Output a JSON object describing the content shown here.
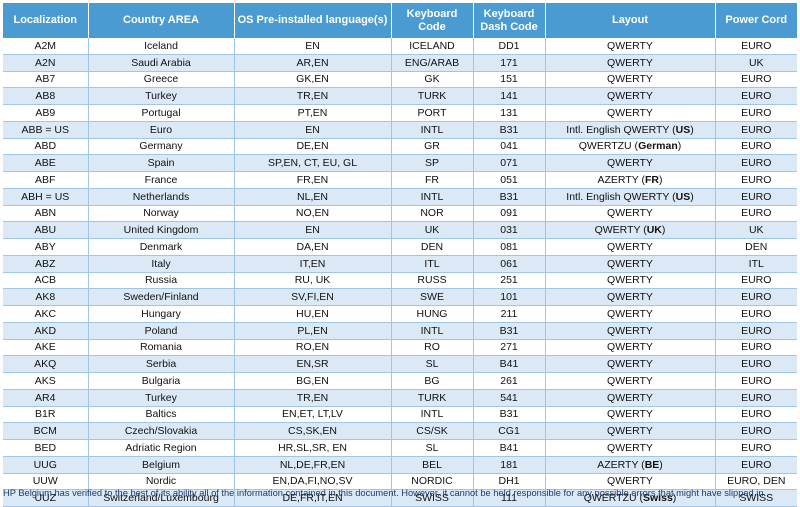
{
  "headers": {
    "localization": "Localization",
    "country": "Country AREA",
    "os_lang": "OS Pre-installed language(s)",
    "kb_code": "Keyboard Code",
    "kb_dash": "Keyboard Dash Code",
    "layout": "Layout",
    "power": "Power Cord"
  },
  "rows": [
    {
      "loc": "A2M",
      "country": "Iceland",
      "lang": "EN",
      "kb": "ICELAND",
      "dash": "DD1",
      "layout": "QWERTY",
      "layout_bold": "",
      "layout_end": "",
      "power": "EURO"
    },
    {
      "loc": "A2N",
      "country": "Saudi Arabia",
      "lang": "AR,EN",
      "kb": "ENG/ARAB",
      "dash": "171",
      "layout": "QWERTY",
      "layout_bold": "",
      "layout_end": "",
      "power": "UK"
    },
    {
      "loc": "AB7",
      "country": "Greece",
      "lang": "GK,EN",
      "kb": "GK",
      "dash": "151",
      "layout": "QWERTY",
      "layout_bold": "",
      "layout_end": "",
      "power": "EURO"
    },
    {
      "loc": "AB8",
      "country": "Turkey",
      "lang": "TR,EN",
      "kb": "TURK",
      "dash": "141",
      "layout": "QWERTY",
      "layout_bold": "",
      "layout_end": "",
      "power": "EURO"
    },
    {
      "loc": "AB9",
      "country": "Portugal",
      "lang": "PT,EN",
      "kb": "PORT",
      "dash": "131",
      "layout": "QWERTY",
      "layout_bold": "",
      "layout_end": "",
      "power": "EURO"
    },
    {
      "loc": "ABB = US",
      "country": "Euro",
      "lang": "EN",
      "kb": "INTL",
      "dash": "B31",
      "layout": "Intl. English QWERTY (",
      "layout_bold": "US",
      "layout_end": ")",
      "power": "EURO"
    },
    {
      "loc": "ABD",
      "country": "Germany",
      "lang": "DE,EN",
      "kb": "GR",
      "dash": "041",
      "layout": "QWERTZU (",
      "layout_bold": "German",
      "layout_end": ")",
      "power": "EURO"
    },
    {
      "loc": "ABE",
      "country": "Spain",
      "lang": "SP,EN, CT, EU, GL",
      "kb": "SP",
      "dash": "071",
      "layout": "QWERTY",
      "layout_bold": "",
      "layout_end": "",
      "power": "EURO"
    },
    {
      "loc": "ABF",
      "country": "France",
      "lang": "FR,EN",
      "kb": "FR",
      "dash": "051",
      "layout": "AZERTY (",
      "layout_bold": "FR",
      "layout_end": ")",
      "power": "EURO"
    },
    {
      "loc": "ABH = US",
      "country": "Netherlands",
      "lang": "NL,EN",
      "kb": "INTL",
      "dash": "B31",
      "layout": "Intl. English QWERTY (",
      "layout_bold": "US",
      "layout_end": ")",
      "power": "EURO"
    },
    {
      "loc": "ABN",
      "country": "Norway",
      "lang": "NO,EN",
      "kb": "NOR",
      "dash": "091",
      "layout": "QWERTY",
      "layout_bold": "",
      "layout_end": "",
      "power": "EURO"
    },
    {
      "loc": "ABU",
      "country": "United Kingdom",
      "lang": "EN",
      "kb": "UK",
      "dash": "031",
      "layout": "QWERTY (",
      "layout_bold": "UK",
      "layout_end": ")",
      "power": "UK"
    },
    {
      "loc": "ABY",
      "country": "Denmark",
      "lang": "DA,EN",
      "kb": "DEN",
      "dash": "081",
      "layout": "QWERTY",
      "layout_bold": "",
      "layout_end": "",
      "power": "DEN"
    },
    {
      "loc": "ABZ",
      "country": "Italy",
      "lang": "IT,EN",
      "kb": "ITL",
      "dash": "061",
      "layout": "QWERTY",
      "layout_bold": "",
      "layout_end": "",
      "power": "ITL"
    },
    {
      "loc": "ACB",
      "country": "Russia",
      "lang": "RU, UK",
      "kb": "RUSS",
      "dash": "251",
      "layout": "QWERTY",
      "layout_bold": "",
      "layout_end": "",
      "power": "EURO"
    },
    {
      "loc": "AK8",
      "country": "Sweden/Finland",
      "lang": "SV,FI,EN",
      "kb": "SWE",
      "dash": "101",
      "layout": "QWERTY",
      "layout_bold": "",
      "layout_end": "",
      "power": "EURO"
    },
    {
      "loc": "AKC",
      "country": "Hungary",
      "lang": "HU,EN",
      "kb": "HUNG",
      "dash": "211",
      "layout": "QWERTY",
      "layout_bold": "",
      "layout_end": "",
      "power": "EURO"
    },
    {
      "loc": "AKD",
      "country": "Poland",
      "lang": "PL,EN",
      "kb": "INTL",
      "dash": "B31",
      "layout": "QWERTY",
      "layout_bold": "",
      "layout_end": "",
      "power": "EURO"
    },
    {
      "loc": "AKE",
      "country": "Romania",
      "lang": "RO,EN",
      "kb": "RO",
      "dash": "271",
      "layout": "QWERTY",
      "layout_bold": "",
      "layout_end": "",
      "power": "EURO"
    },
    {
      "loc": "AKQ",
      "country": "Serbia",
      "lang": "EN,SR",
      "kb": "SL",
      "dash": "B41",
      "layout": "QWERTY",
      "layout_bold": "",
      "layout_end": "",
      "power": "EURO"
    },
    {
      "loc": "AKS",
      "country": "Bulgaria",
      "lang": "BG,EN",
      "kb": "BG",
      "dash": "261",
      "layout": "QWERTY",
      "layout_bold": "",
      "layout_end": "",
      "power": "EURO"
    },
    {
      "loc": "AR4",
      "country": "Turkey",
      "lang": "TR,EN",
      "kb": "TURK",
      "dash": "541",
      "layout": "QWERTY",
      "layout_bold": "",
      "layout_end": "",
      "power": "EURO"
    },
    {
      "loc": "B1R",
      "country": "Baltics",
      "lang": "EN,ET, LT,LV",
      "kb": "INTL",
      "dash": "B31",
      "layout": "QWERTY",
      "layout_bold": "",
      "layout_end": "",
      "power": "EURO"
    },
    {
      "loc": "BCM",
      "country": "Czech/Slovakia",
      "lang": "CS,SK,EN",
      "kb": "CS/SK",
      "dash": "CG1",
      "layout": "QWERTY",
      "layout_bold": "",
      "layout_end": "",
      "power": "EURO"
    },
    {
      "loc": "BED",
      "country": "Adriatic Region",
      "lang": "HR,SL,SR, EN",
      "kb": "SL",
      "dash": "B41",
      "layout": "QWERTY",
      "layout_bold": "",
      "layout_end": "",
      "power": "EURO"
    },
    {
      "loc": "UUG",
      "country": "Belgium",
      "lang": "NL,DE,FR,EN",
      "kb": "BEL",
      "dash": "181",
      "layout": "AZERTY (",
      "layout_bold": "BE",
      "layout_end": ")",
      "power": "EURO"
    },
    {
      "loc": "UUW",
      "country": "Nordic",
      "lang": "EN,DA,FI,NO,SV",
      "kb": "NORDIC",
      "dash": "DH1",
      "layout": "QWERTY",
      "layout_bold": "",
      "layout_end": "",
      "power": "EURO, DEN"
    },
    {
      "loc": "UUZ",
      "country": "Switzerland/Luxembourg",
      "lang": "DE,FR,IT,EN",
      "kb": "SWISS",
      "dash": "111",
      "layout": "QWERTZU (",
      "layout_bold": "Swiss",
      "layout_end": ")",
      "power": "SWISS"
    }
  ],
  "footer": "HP Belgium has verified to the best of its ability all of the information contained in this document.  However, it cannot be held responsible for any possible errors that might have slipped in."
}
